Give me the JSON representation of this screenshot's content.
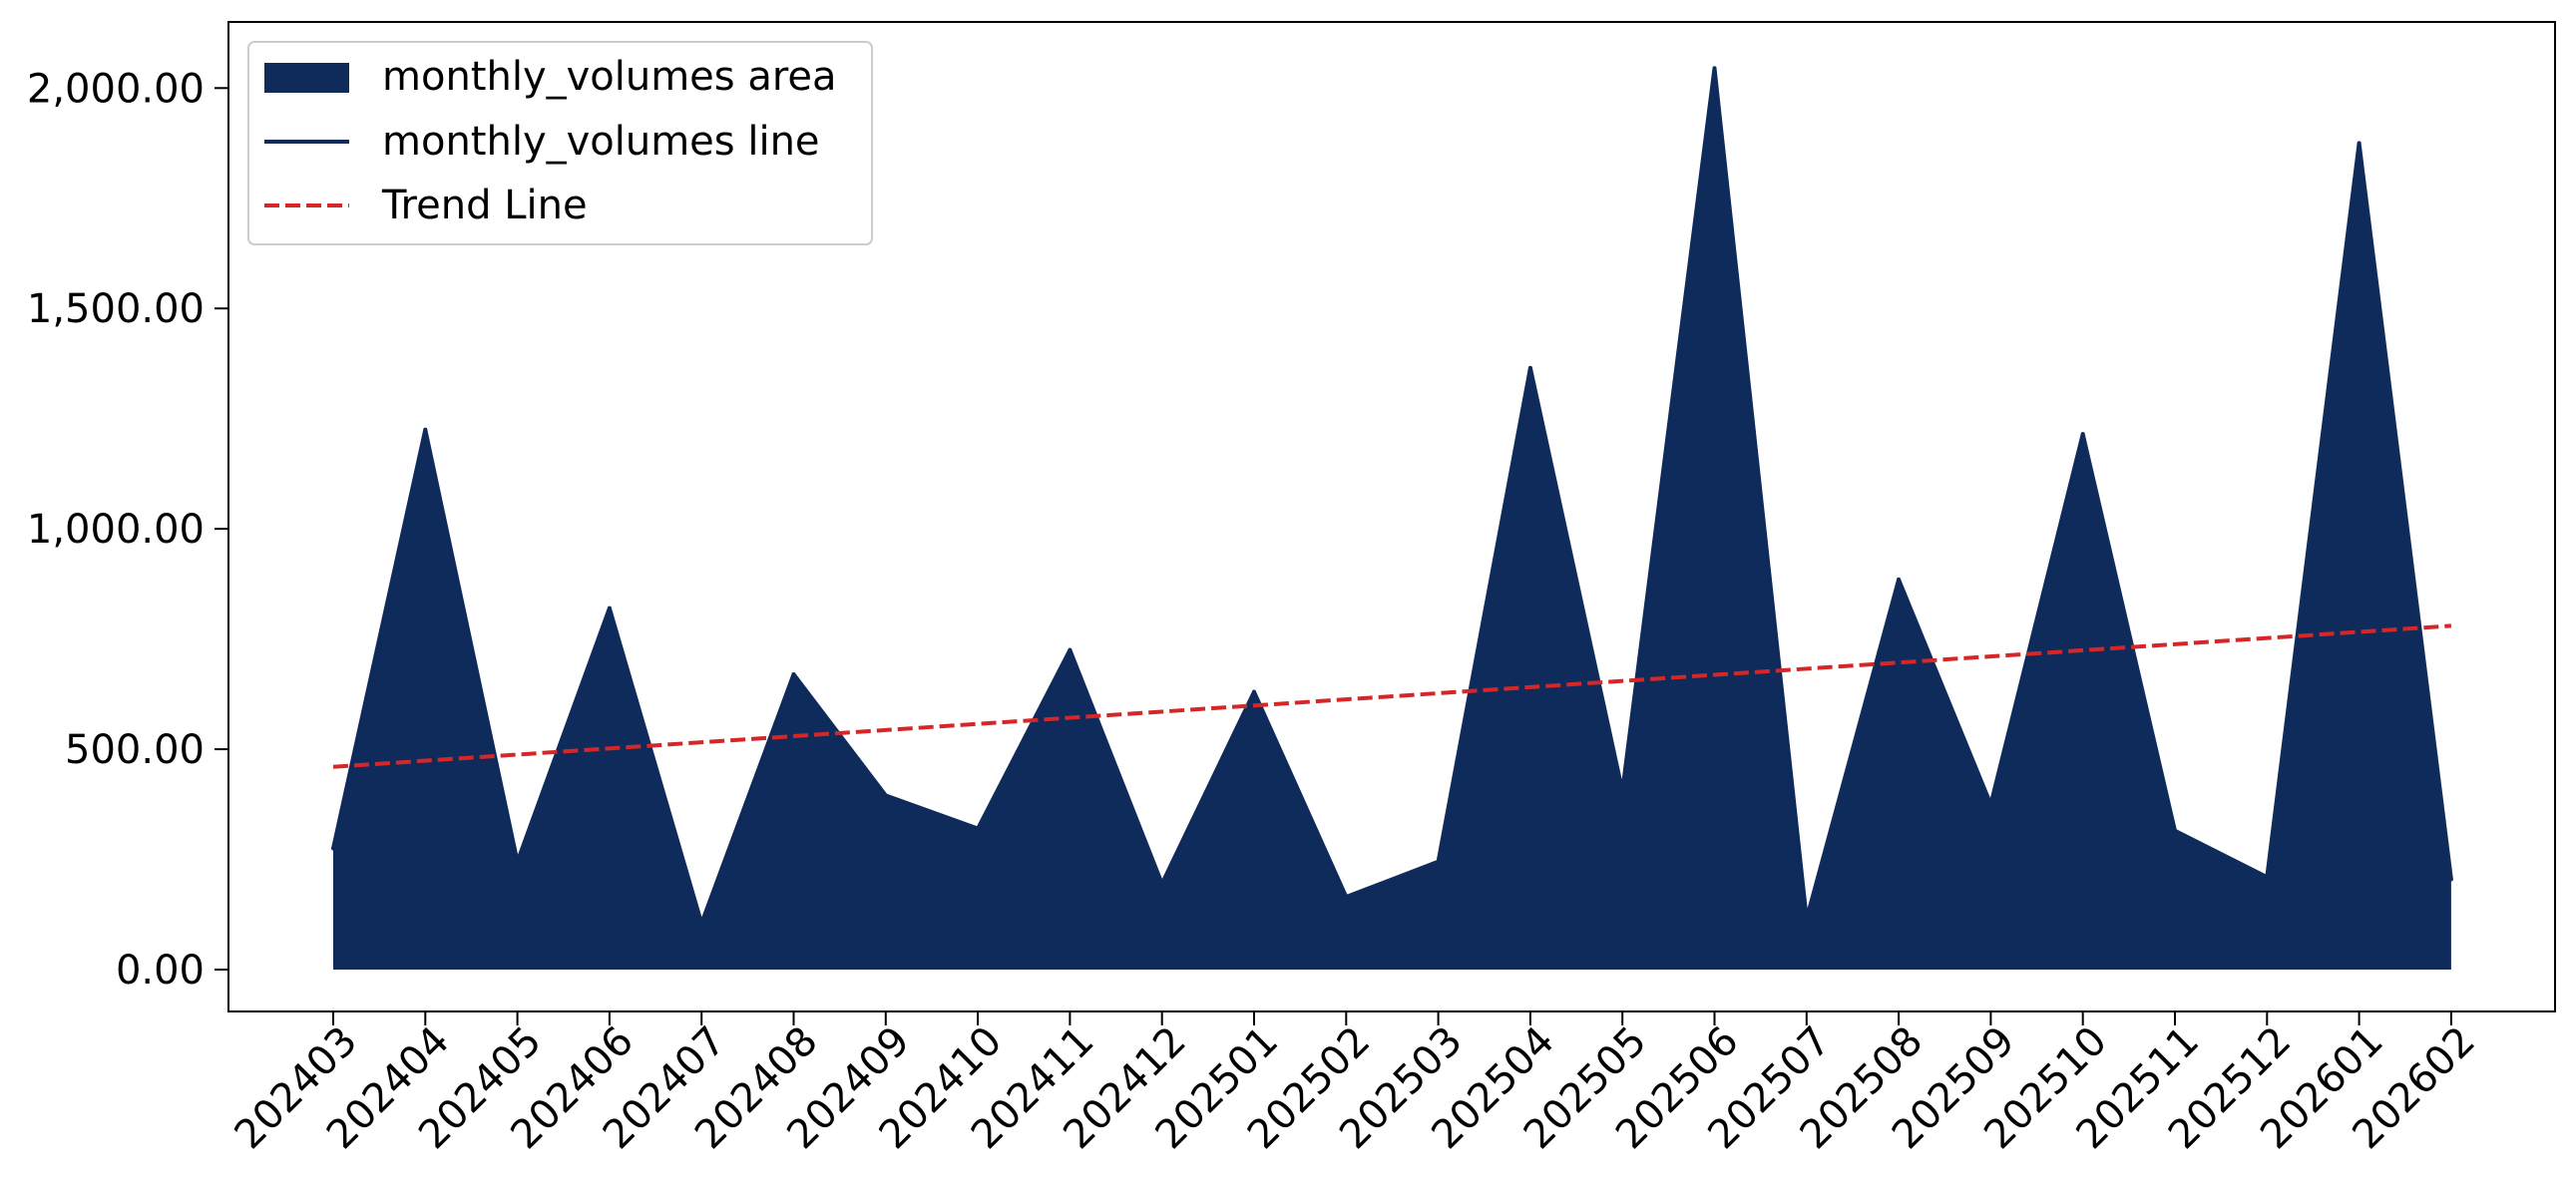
{
  "chart_data": {
    "type": "area",
    "title": "",
    "xlabel": "",
    "ylabel": "",
    "categories": [
      "202403",
      "202404",
      "202405",
      "202406",
      "202407",
      "202408",
      "202409",
      "202410",
      "202411",
      "202412",
      "202501",
      "202502",
      "202503",
      "202504",
      "202505",
      "202506",
      "202507",
      "202508",
      "202509",
      "202510",
      "202511",
      "202512",
      "202601",
      "202602"
    ],
    "series": [
      {
        "name": "monthly_volumes area",
        "kind": "area",
        "color": "#0f2b5b",
        "values": [
          275,
          1225,
          245,
          820,
          105,
          670,
          395,
          320,
          725,
          195,
          630,
          165,
          245,
          1365,
          405,
          2045,
          115,
          885,
          375,
          1215,
          315,
          210,
          1875,
          205
        ]
      },
      {
        "name": "monthly_volumes line",
        "kind": "line",
        "color": "#0f2b5b",
        "values": [
          275,
          1225,
          245,
          820,
          105,
          670,
          395,
          320,
          725,
          195,
          630,
          165,
          245,
          1365,
          405,
          2045,
          115,
          885,
          375,
          1215,
          315,
          210,
          1875,
          205
        ]
      },
      {
        "name": "Trend Line",
        "kind": "trend",
        "color": "#d62728",
        "dash": "dashed",
        "start": 460,
        "end": 780
      }
    ],
    "y_ticks": [
      0,
      500,
      1000,
      1500,
      2000
    ],
    "y_tick_labels": [
      "0.00",
      "500.00",
      "1,000.00",
      "1,500.00",
      "2,000.00"
    ],
    "ylim": [
      -95,
      2150
    ],
    "grid": false,
    "legend_position": "upper-left"
  }
}
